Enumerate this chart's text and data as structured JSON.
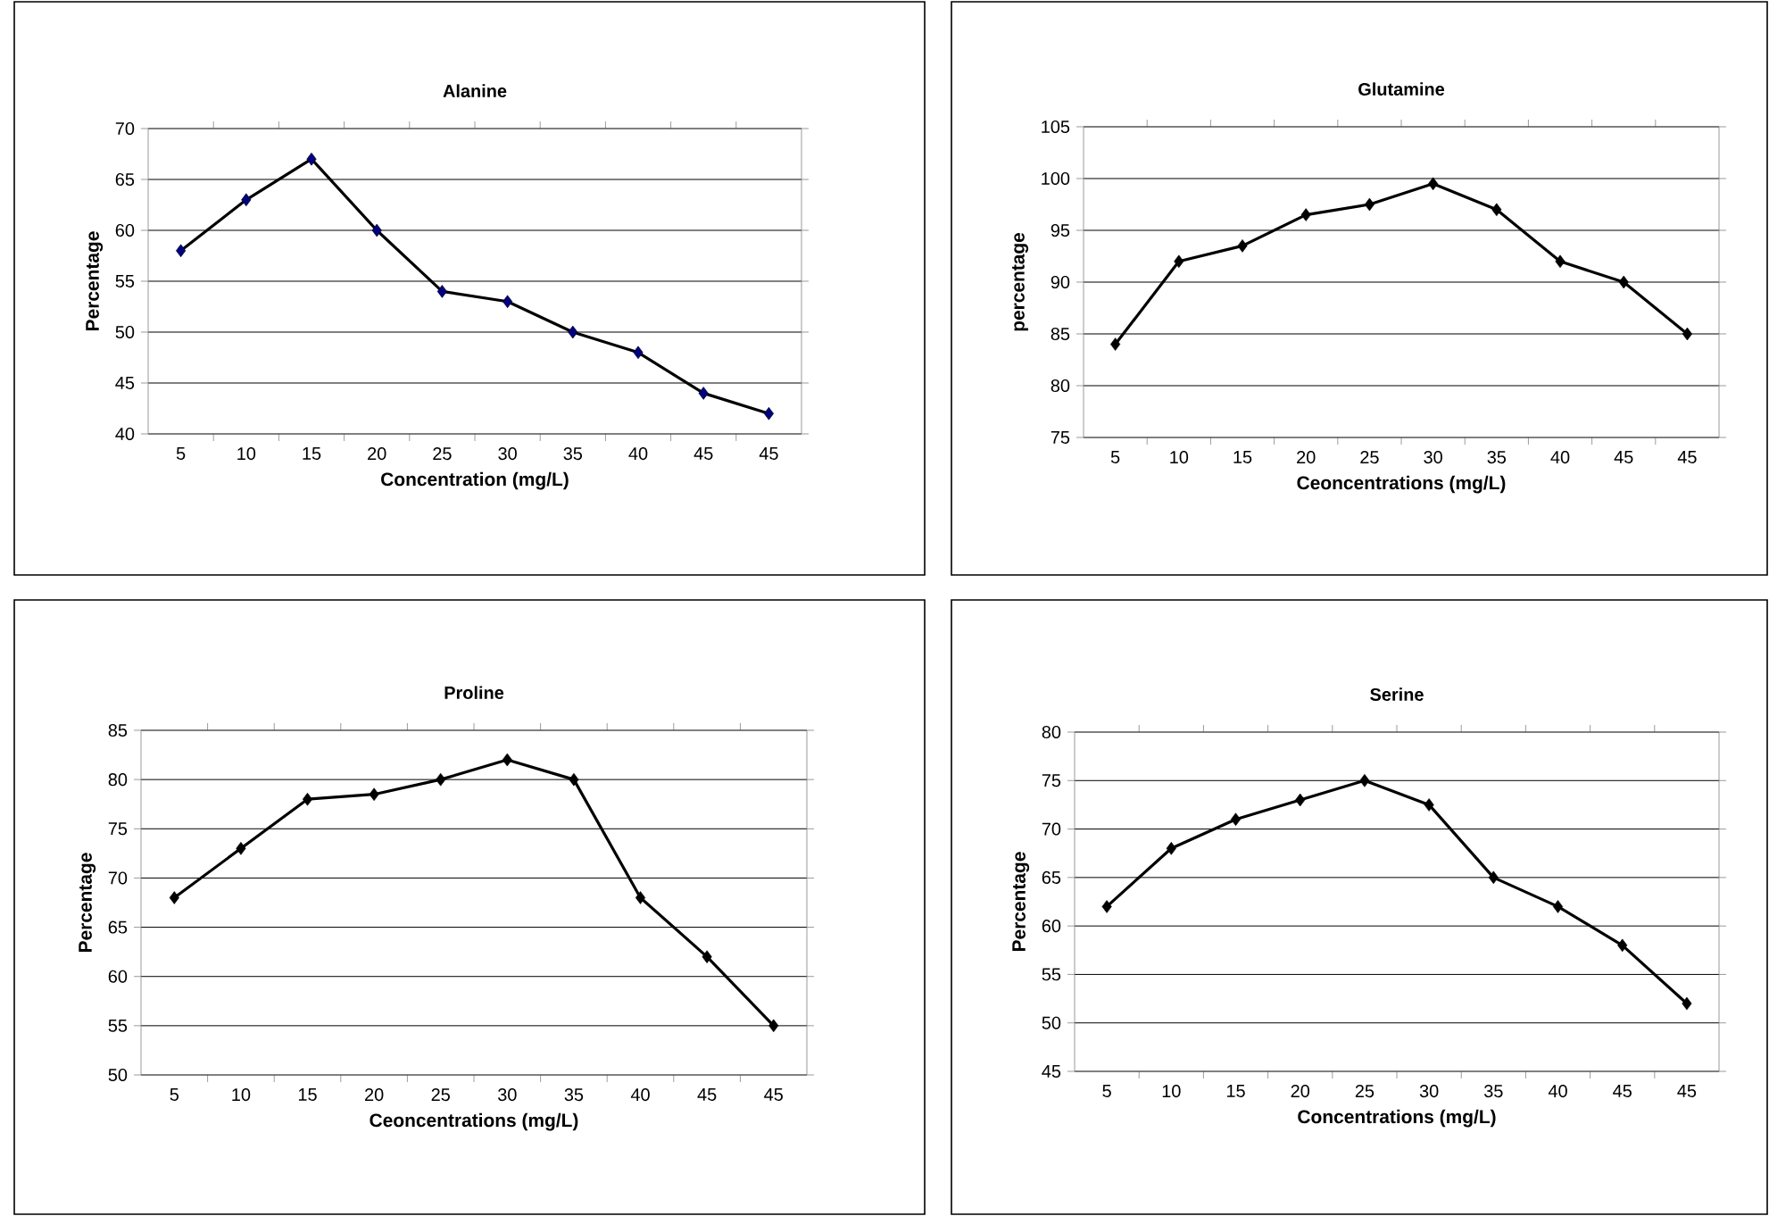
{
  "chart_data": [
    {
      "type": "line",
      "title": "Alanine",
      "xlabel": "Concentration (mg/L)",
      "ylabel": "Percentage",
      "categories": [
        "5",
        "10",
        "15",
        "20",
        "25",
        "30",
        "35",
        "40",
        "45",
        "45"
      ],
      "series": [
        {
          "color": "#000080",
          "values": [
            58,
            63,
            67,
            60,
            54,
            53,
            50,
            48,
            44,
            42
          ]
        }
      ],
      "ylim": [
        40,
        70
      ],
      "yticks": [
        40,
        45,
        50,
        55,
        60,
        65,
        70
      ],
      "grid": "y",
      "marker": "diamond",
      "line_style": "solid"
    },
    {
      "type": "line",
      "title": "Glutamine",
      "xlabel": "Ceoncentrations (mg/L)",
      "ylabel": "percentage",
      "categories": [
        "5",
        "10",
        "15",
        "20",
        "25",
        "30",
        "35",
        "40",
        "45",
        "45"
      ],
      "series": [
        {
          "color": "#000000",
          "values": [
            84,
            92,
            93.5,
            96.5,
            97.5,
            99.5,
            97,
            92,
            90,
            85
          ]
        }
      ],
      "ylim": [
        75,
        105
      ],
      "yticks": [
        75,
        80,
        85,
        90,
        95,
        100,
        105
      ],
      "grid": "y",
      "marker": "diamond",
      "line_style": "solid"
    },
    {
      "type": "line",
      "title": "Proline",
      "xlabel": "Ceoncentrations (mg/L)",
      "ylabel": "Percentage",
      "categories": [
        "5",
        "10",
        "15",
        "20",
        "25",
        "30",
        "35",
        "40",
        "45",
        "45"
      ],
      "series": [
        {
          "color": "#000000",
          "values": [
            68,
            73,
            78,
            78.5,
            80,
            82,
            80,
            68,
            62,
            55
          ]
        }
      ],
      "ylim": [
        50,
        85
      ],
      "yticks": [
        50,
        55,
        60,
        65,
        70,
        75,
        80,
        85
      ],
      "grid": "y",
      "marker": "diamond",
      "line_style": "solid"
    },
    {
      "type": "line",
      "title": "Serine",
      "xlabel": "Concentrations (mg/L)",
      "ylabel": "Percentage",
      "categories": [
        "5",
        "10",
        "15",
        "20",
        "25",
        "30",
        "35",
        "40",
        "45",
        "45"
      ],
      "series": [
        {
          "color": "#000000",
          "values": [
            62,
            68,
            71,
            73,
            75,
            72.5,
            65,
            62,
            58,
            52
          ]
        }
      ],
      "ylim": [
        45,
        80
      ],
      "yticks": [
        45,
        50,
        55,
        60,
        65,
        70,
        75,
        80
      ],
      "grid": "y",
      "marker": "diamond",
      "line_style": "solid"
    }
  ]
}
